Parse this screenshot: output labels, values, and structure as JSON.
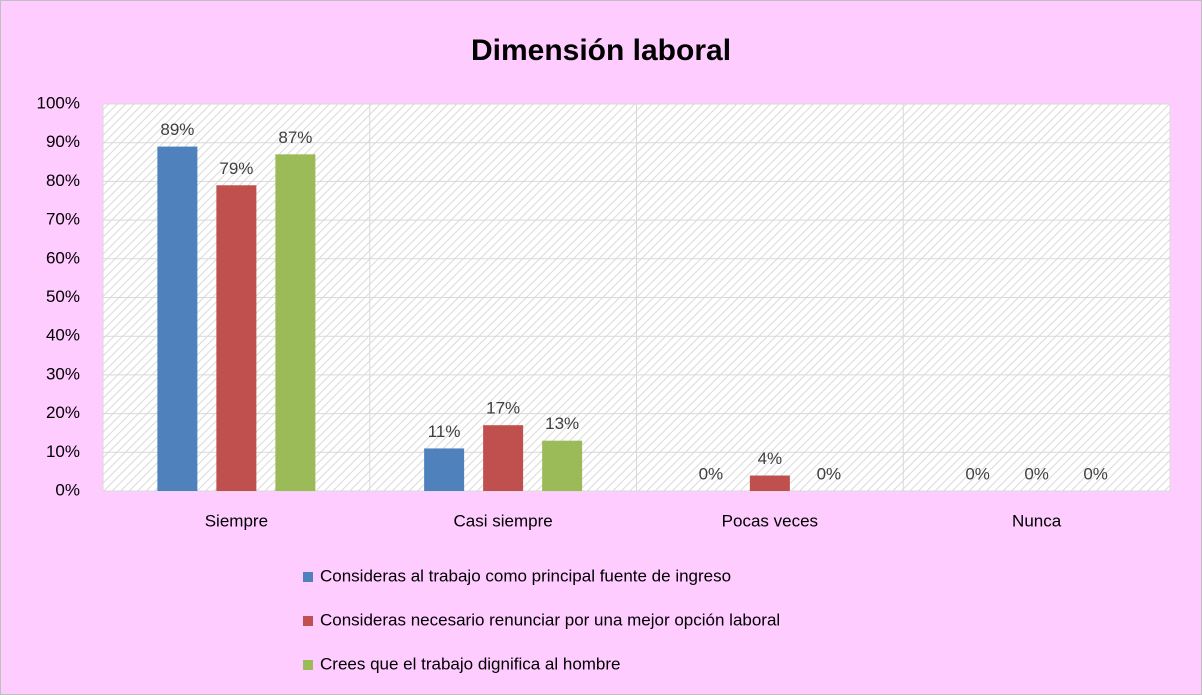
{
  "chart_data": {
    "type": "bar",
    "title": "Dimensión laboral",
    "categories": [
      "Siempre",
      "Casi siempre",
      "Pocas veces",
      "Nunca"
    ],
    "series": [
      {
        "name": "Consideras al trabajo como principal fuente de ingreso",
        "color": "#4f81bd",
        "values": [
          89,
          11,
          0,
          0
        ],
        "value_labels": [
          "89%",
          "11%",
          "0%",
          "0%"
        ]
      },
      {
        "name": "Consideras necesario renunciar por una mejor opción laboral",
        "color": "#c0504d",
        "values": [
          79,
          17,
          4,
          0
        ],
        "value_labels": [
          "79%",
          "17%",
          "4%",
          "0%"
        ]
      },
      {
        "name": "Crees que el trabajo dignifica al hombre",
        "color": "#9bbb59",
        "values": [
          87,
          13,
          0,
          0
        ],
        "value_labels": [
          "87%",
          "13%",
          "0%",
          "0%"
        ]
      }
    ],
    "ylim": [
      0,
      100
    ],
    "yticks": [
      {
        "value": 0,
        "label": "0%"
      },
      {
        "value": 10,
        "label": "10%"
      },
      {
        "value": 20,
        "label": "20%"
      },
      {
        "value": 30,
        "label": "30%"
      },
      {
        "value": 40,
        "label": "40%"
      },
      {
        "value": 50,
        "label": "50%"
      },
      {
        "value": 60,
        "label": "60%"
      },
      {
        "value": 70,
        "label": "70%"
      },
      {
        "value": 80,
        "label": "80%"
      },
      {
        "value": 90,
        "label": "90%"
      },
      {
        "value": 100,
        "label": "100%"
      }
    ],
    "grid": true,
    "legend": "bottom"
  }
}
